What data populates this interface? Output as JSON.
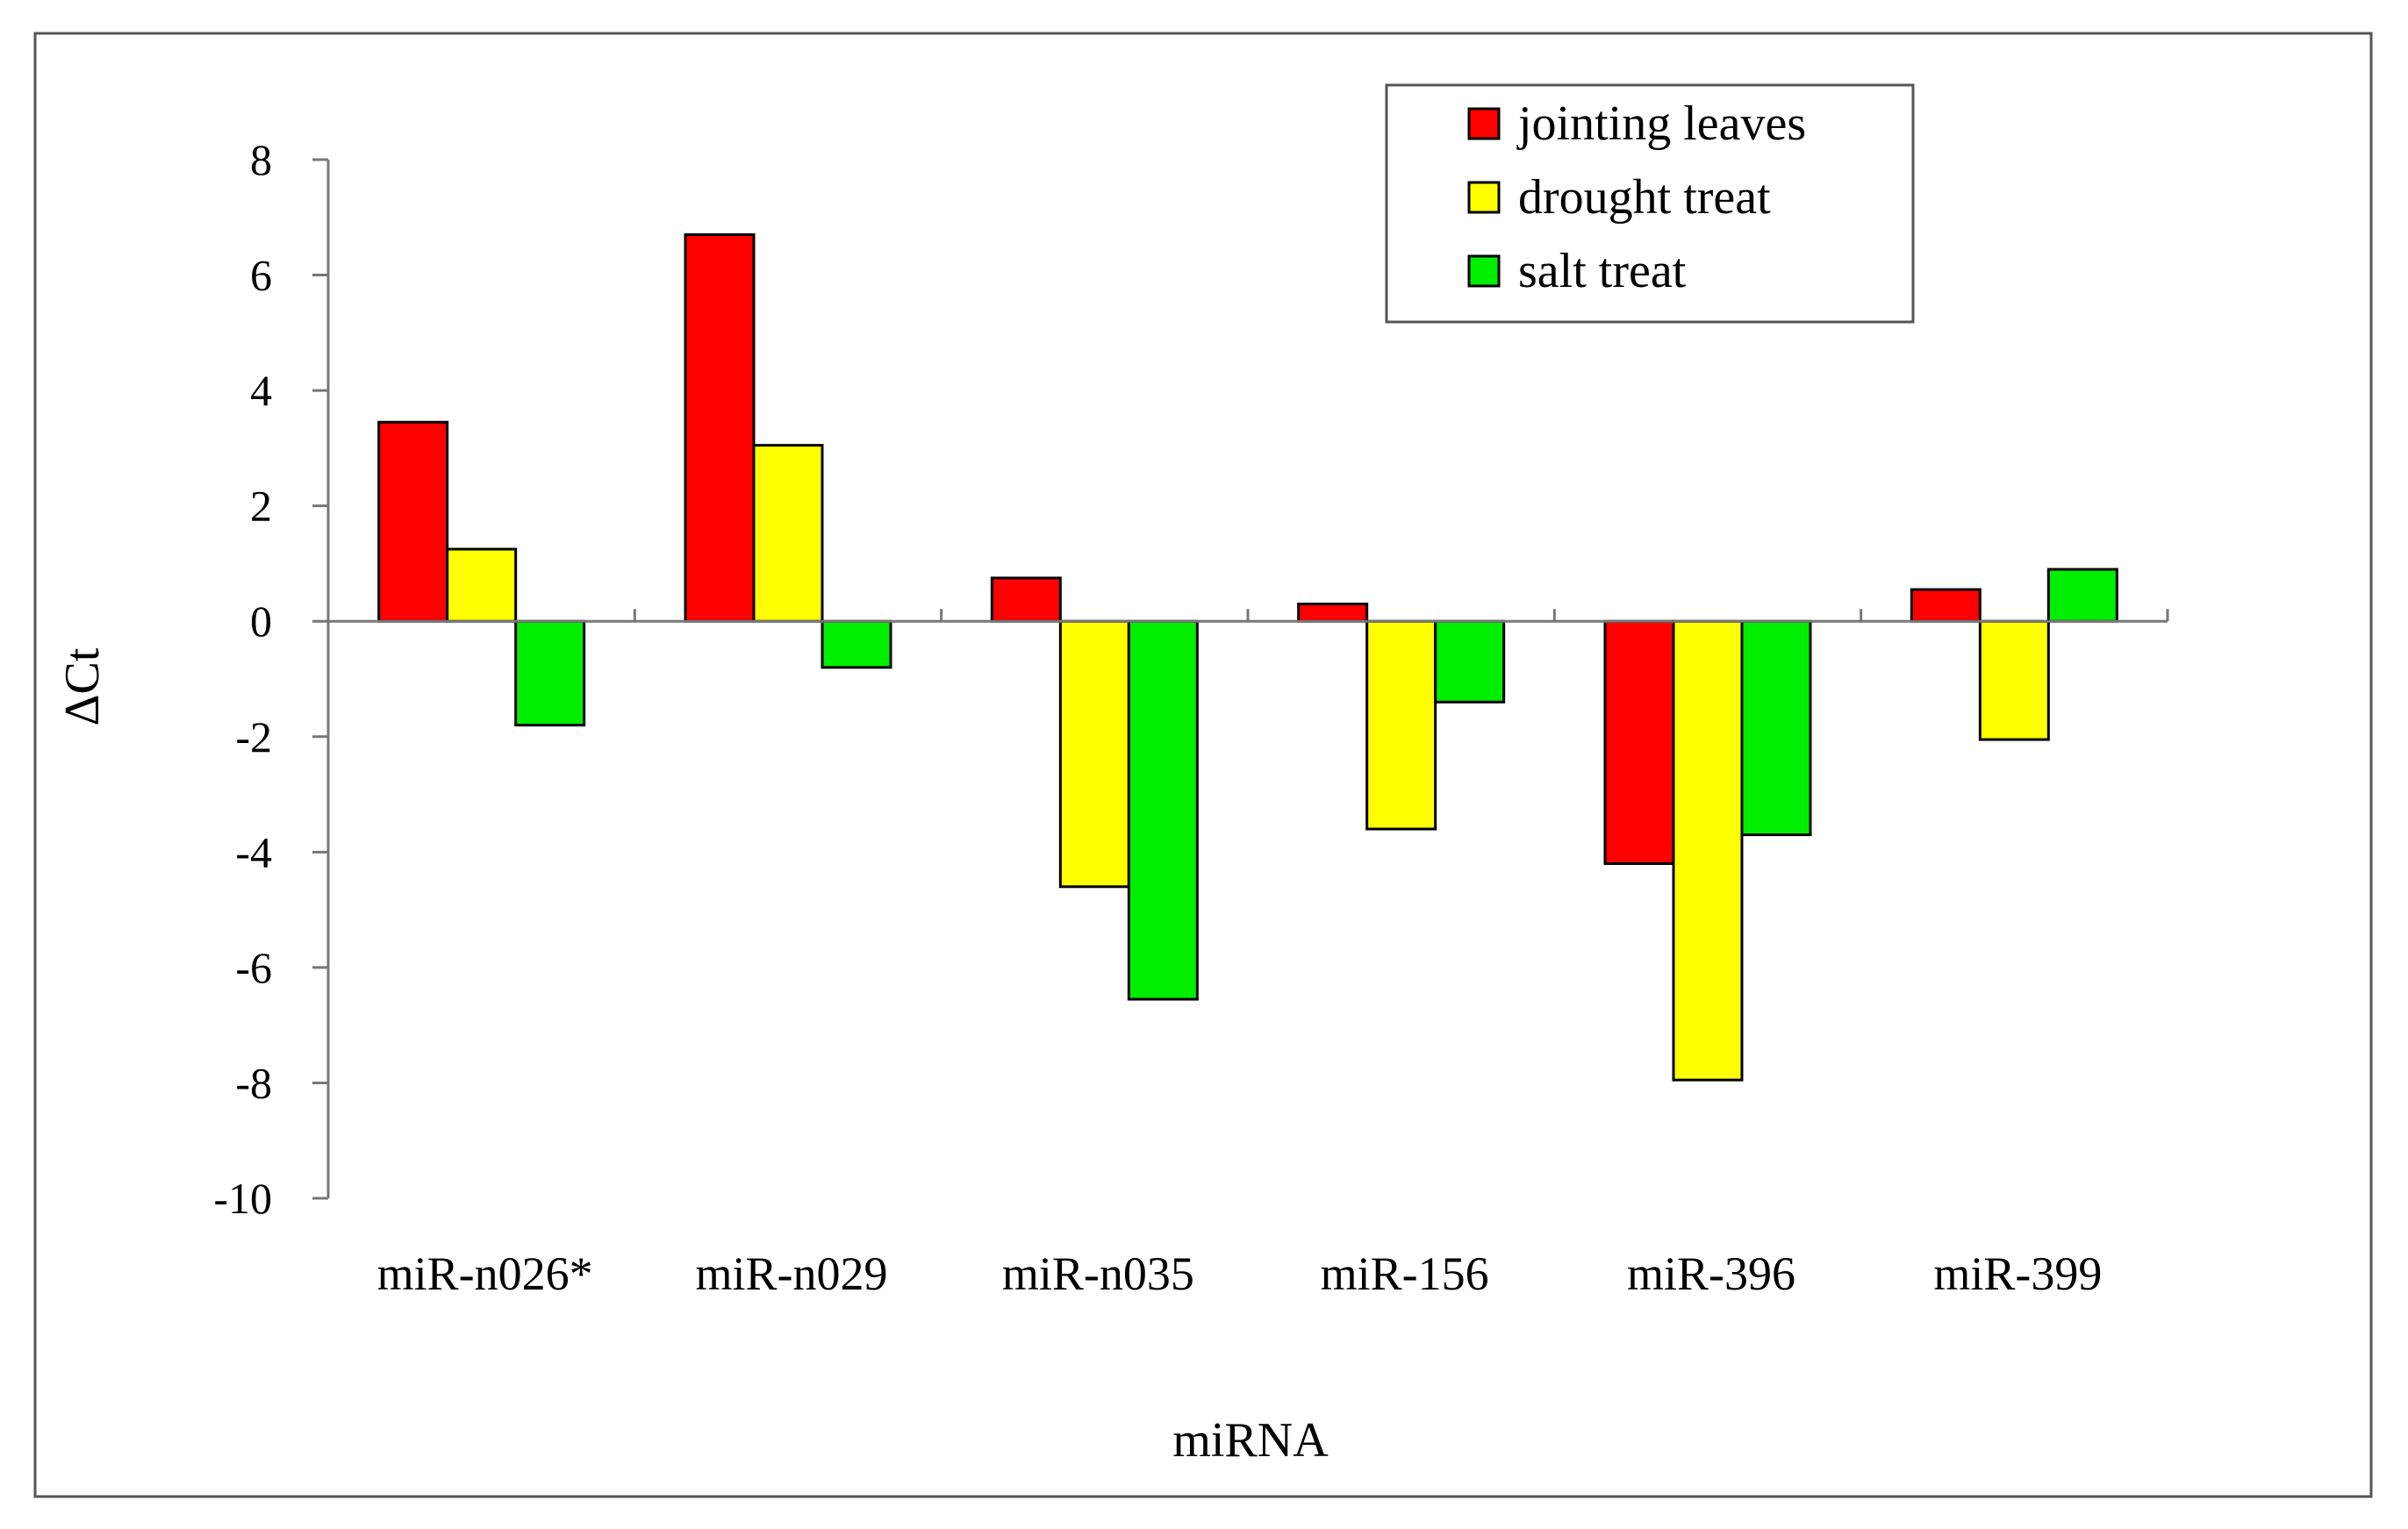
{
  "chart_data": {
    "type": "bar",
    "title": "",
    "xlabel": "miRNA",
    "ylabel": "ΔCt",
    "ylim": [
      -10,
      8
    ],
    "ytick_step": 2,
    "grid": false,
    "legend_position": "top-right",
    "categories": [
      "miR-n026*",
      "miR-n029",
      "miR-n035",
      "miR-156",
      "miR-396",
      "miR-399"
    ],
    "series": [
      {
        "name": "jointing leaves",
        "color": "#ff0000",
        "values": [
          3.45,
          6.7,
          0.75,
          0.3,
          -4.2,
          0.55
        ]
      },
      {
        "name": "drought treat",
        "color": "#ffff00",
        "values": [
          1.25,
          3.05,
          -4.6,
          -3.6,
          -7.95,
          -2.05
        ]
      },
      {
        "name": "salt treat",
        "color": "#00ee00",
        "values": [
          -1.8,
          -0.8,
          -6.55,
          -1.4,
          -3.7,
          0.9
        ]
      }
    ]
  }
}
